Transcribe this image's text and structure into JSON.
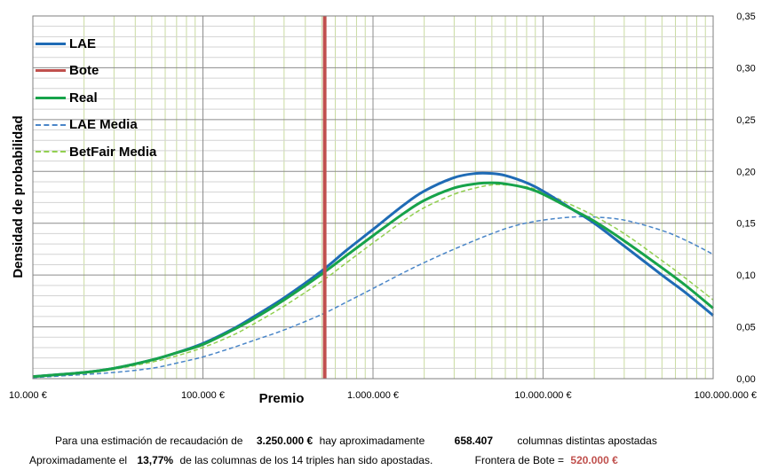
{
  "chart_data": {
    "type": "line",
    "ylabel": "Densidad de probabilidad",
    "xlabel": "Premio",
    "x_scale": "log",
    "xlim": [
      10000,
      100000000
    ],
    "ylim": [
      0,
      0.35
    ],
    "x_ticks": [
      10000,
      100000,
      1000000,
      10000000,
      100000000
    ],
    "x_tick_labels": [
      "10.000 €",
      "100.000 €",
      "1.000.000 €",
      "10.000.000 €",
      "100.000.000 €"
    ],
    "y_ticks": [
      0,
      0.05,
      0.1,
      0.15,
      0.2,
      0.25,
      0.3,
      0.35
    ],
    "y_tick_labels": [
      "0,00",
      "0,05",
      "0,10",
      "0,15",
      "0,20",
      "0,25",
      "0,30",
      "0,35"
    ],
    "y_axis_side": "right",
    "grid": true,
    "legend_position": "top-left",
    "bote_x": 520000,
    "series": [
      {
        "name": "LAE",
        "color": "#1f6bb5",
        "style": "solid",
        "width": 3,
        "x": [
          10000,
          20000,
          30000,
          50000,
          70000,
          100000,
          150000,
          200000,
          300000,
          500000,
          700000,
          1000000,
          1500000,
          2000000,
          3000000,
          4000000,
          5000000,
          6000000,
          8000000,
          10000000,
          15000000,
          20000000,
          30000000,
          50000000,
          70000000,
          100000000
        ],
        "y": [
          0.002,
          0.006,
          0.01,
          0.018,
          0.025,
          0.034,
          0.048,
          0.06,
          0.078,
          0.104,
          0.124,
          0.144,
          0.167,
          0.181,
          0.194,
          0.198,
          0.198,
          0.196,
          0.189,
          0.181,
          0.163,
          0.15,
          0.128,
          0.1,
          0.082,
          0.061
        ]
      },
      {
        "name": "Bote",
        "color": "#c0504d",
        "style": "solid",
        "width": 4,
        "x": [
          520000,
          520000
        ],
        "y": [
          0,
          0.35
        ]
      },
      {
        "name": "Real",
        "color": "#17a34a",
        "style": "solid",
        "width": 3,
        "x": [
          10000,
          20000,
          30000,
          50000,
          70000,
          100000,
          150000,
          200000,
          300000,
          500000,
          700000,
          1000000,
          1500000,
          2000000,
          3000000,
          4000000,
          5000000,
          6000000,
          8000000,
          10000000,
          15000000,
          20000000,
          30000000,
          50000000,
          70000000,
          100000000
        ],
        "y": [
          0.002,
          0.006,
          0.01,
          0.018,
          0.025,
          0.033,
          0.047,
          0.058,
          0.076,
          0.101,
          0.119,
          0.138,
          0.159,
          0.172,
          0.184,
          0.188,
          0.189,
          0.188,
          0.184,
          0.178,
          0.163,
          0.152,
          0.133,
          0.107,
          0.089,
          0.068
        ]
      },
      {
        "name": "LAE Media",
        "color": "#4a86c8",
        "style": "dashed",
        "width": 1.5,
        "x": [
          10000,
          20000,
          30000,
          50000,
          70000,
          100000,
          150000,
          200000,
          300000,
          500000,
          700000,
          1000000,
          1500000,
          2000000,
          3000000,
          5000000,
          7000000,
          10000000,
          15000000,
          20000000,
          30000000,
          50000000,
          70000000,
          100000000
        ],
        "y": [
          0.001,
          0.004,
          0.006,
          0.01,
          0.015,
          0.021,
          0.03,
          0.037,
          0.047,
          0.062,
          0.074,
          0.087,
          0.102,
          0.112,
          0.125,
          0.14,
          0.148,
          0.153,
          0.156,
          0.156,
          0.153,
          0.143,
          0.133,
          0.12
        ]
      },
      {
        "name": "BetFair Media",
        "color": "#92d050",
        "style": "dashed",
        "width": 1.5,
        "x": [
          10000,
          20000,
          30000,
          50000,
          70000,
          100000,
          150000,
          200000,
          300000,
          500000,
          700000,
          1000000,
          1500000,
          2000000,
          3000000,
          4000000,
          5000000,
          6000000,
          8000000,
          10000000,
          15000000,
          20000000,
          30000000,
          50000000,
          70000000,
          100000000
        ],
        "y": [
          0.002,
          0.005,
          0.009,
          0.016,
          0.022,
          0.03,
          0.042,
          0.053,
          0.07,
          0.094,
          0.112,
          0.131,
          0.152,
          0.165,
          0.178,
          0.184,
          0.187,
          0.187,
          0.185,
          0.18,
          0.167,
          0.157,
          0.14,
          0.114,
          0.096,
          0.076
        ]
      }
    ]
  },
  "footer": {
    "line1": {
      "t1": "Para  una estimación de recaudación de",
      "v1": "3.250.000 €",
      "t2": "hay aproximadamente",
      "v2": "658.407",
      "t3": "columnas distintas apostadas"
    },
    "line2": {
      "t1": "Aproximadamente el",
      "v1": "13,77%",
      "t2": "de las columnas de los 14 triples han sido apostadas.",
      "t3": "Frontera de Bote =",
      "v2": "520.000 €"
    }
  }
}
